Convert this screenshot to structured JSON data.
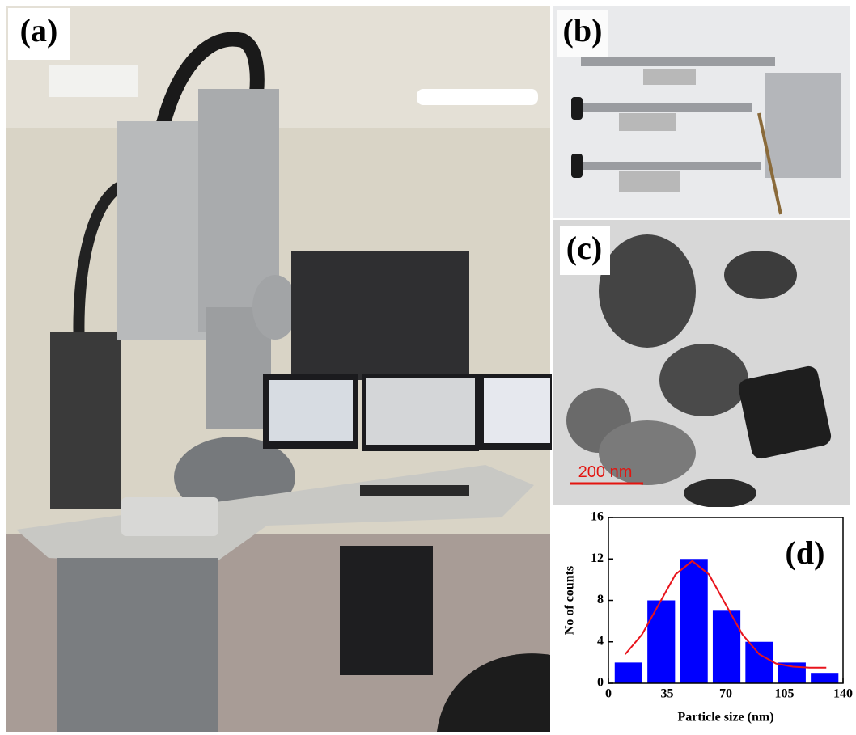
{
  "panels": {
    "a": "(a)",
    "b": "(b)",
    "c": "(c)"
  },
  "scale_bar": "200 nm",
  "chart_data": {
    "type": "bar",
    "annotation": "(d)",
    "xlabel": "Particle size (nm)",
    "ylabel": "No of counts",
    "xlim": [
      0,
      140
    ],
    "xticks": [
      0,
      35,
      70,
      105,
      140
    ],
    "ylim": [
      0,
      16
    ],
    "yticks": [
      0,
      4,
      8,
      12,
      16
    ],
    "series": [
      {
        "type": "bar",
        "color": "#0000ff",
        "x": [
          12,
          31.5,
          51,
          70.5,
          90,
          109.5,
          129
        ],
        "values": [
          2,
          8,
          12,
          7,
          4,
          2,
          1
        ]
      },
      {
        "type": "line",
        "color": "#e8141c",
        "x": [
          10,
          20,
          30,
          40,
          50,
          60,
          70,
          80,
          90,
          100,
          110,
          120,
          130
        ],
        "values": [
          2.8,
          4.7,
          7.6,
          10.5,
          11.8,
          10.5,
          7.6,
          4.7,
          2.8,
          1.9,
          1.6,
          1.5,
          1.5
        ]
      }
    ]
  }
}
